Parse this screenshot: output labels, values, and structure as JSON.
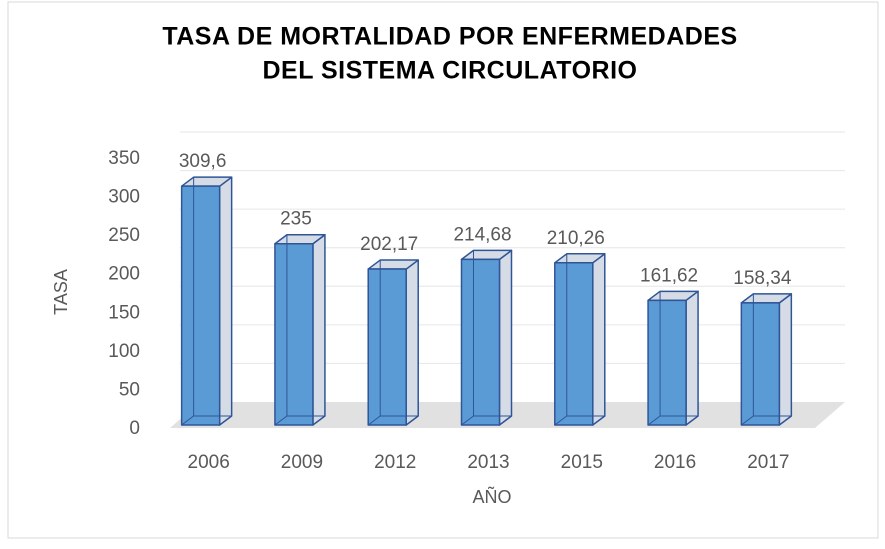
{
  "chart_data": {
    "type": "bar3d",
    "title": [
      "TASA DE MORTALIDAD POR ENFERMEDADES",
      "DEL SISTEMA CIRCULATORIO"
    ],
    "x_label": "AÑO",
    "y_label": "TASA",
    "categories": [
      "2006",
      "2009",
      "2012",
      "2013",
      "2015",
      "2016",
      "2017"
    ],
    "values": [
      309.6,
      235,
      202.17,
      214.68,
      210.26,
      161.62,
      158.34
    ],
    "value_labels": [
      "309,6",
      "235",
      "202,17",
      "214,68",
      "210,26",
      "161,62",
      "158,34"
    ],
    "color": "#5b9bd5",
    "side_color": "#d6dce5",
    "edge_color": "#2f5597",
    "ylim": [
      0,
      350
    ],
    "yticks": [
      0,
      50,
      100,
      150,
      200,
      250,
      300,
      350
    ],
    "grid": true
  }
}
